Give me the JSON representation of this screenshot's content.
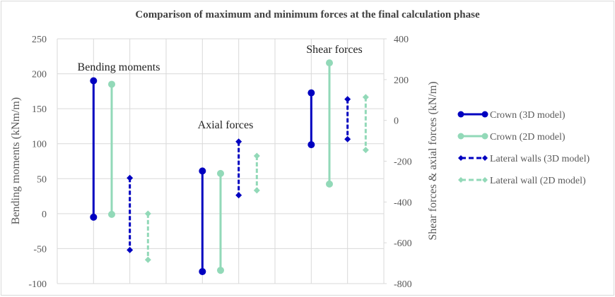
{
  "chart_data": {
    "type": "line",
    "subtype": "high-low range (min/max bars)",
    "title": "Comparison of maximum and minimum forces at the final calculation phase",
    "ylabel_left": "Bending moments (kNm/m)",
    "ylabel_right": "Shear forces & axial forces (kN/m)",
    "ylim_left": [
      -100,
      250
    ],
    "yticks_left": [
      250,
      200,
      150,
      100,
      50,
      0,
      -50,
      -100
    ],
    "ylim_right": [
      -800,
      400
    ],
    "yticks_right": [
      400,
      200,
      0,
      -200,
      -400,
      -600,
      -800
    ],
    "grid": true,
    "legend_position": "right",
    "groups": [
      {
        "label": "Bending moments",
        "axis": "left"
      },
      {
        "label": "Axial forces",
        "axis": "right"
      },
      {
        "label": "Shear forces",
        "axis": "right"
      }
    ],
    "series": [
      {
        "name": "Crown (3D model)",
        "color": "#0000C0",
        "style": "solid",
        "marker": "circle",
        "ranges": [
          {
            "group": "Bending moments",
            "max": 190,
            "min": -5
          },
          {
            "group": "Axial forces",
            "max": -248,
            "min": -741
          },
          {
            "group": "Shear forces",
            "max": 135,
            "min": -119
          }
        ]
      },
      {
        "name": "Crown (2D model)",
        "color": "#92D9B8",
        "style": "solid",
        "marker": "circle",
        "ranges": [
          {
            "group": "Bending moments",
            "max": 185,
            "min": -1
          },
          {
            "group": "Axial forces",
            "max": -260,
            "min": -735
          },
          {
            "group": "Shear forces",
            "max": 282,
            "min": -312
          }
        ]
      },
      {
        "name": "Lateral walls (3D model)",
        "color": "#0000C0",
        "style": "dashed",
        "marker": "diamond",
        "ranges": [
          {
            "group": "Bending moments",
            "max": 51,
            "min": -52
          },
          {
            "group": "Axial forces",
            "max": -104,
            "min": -367
          },
          {
            "group": "Shear forces",
            "max": 104,
            "min": -92
          }
        ]
      },
      {
        "name": "Lateral wall (2D model)",
        "color": "#92D9B8",
        "style": "dashed",
        "marker": "diamond",
        "ranges": [
          {
            "group": "Bending moments",
            "max": 0,
            "min": -66
          },
          {
            "group": "Axial forces",
            "max": -174,
            "min": -343
          },
          {
            "group": "Shear forces",
            "max": 114,
            "min": -145
          }
        ]
      }
    ]
  }
}
